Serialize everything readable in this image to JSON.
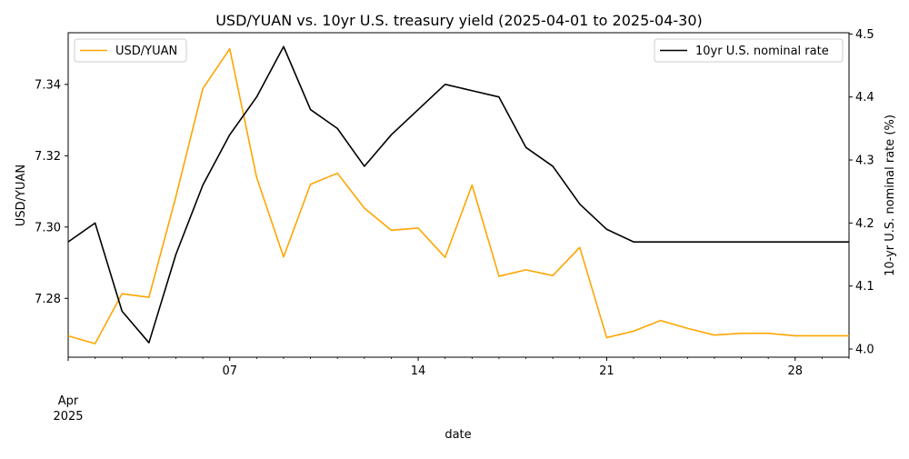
{
  "chart_data": {
    "type": "line",
    "title": "USD/YUAN vs. 10yr U.S. treasury yield (2025-04-01 to 2025-04-30)",
    "xlabel": "date",
    "x_tick_labels": [
      "07",
      "14",
      "21",
      "28"
    ],
    "x_tick_days": [
      7,
      14,
      21,
      28
    ],
    "x_origin_label": {
      "month": "Apr",
      "year": "2025"
    },
    "xlim": [
      1,
      30
    ],
    "x": [
      1,
      2,
      3,
      4,
      5,
      6,
      7,
      8,
      9,
      10,
      11,
      12,
      13,
      14,
      15,
      16,
      17,
      18,
      19,
      20,
      21,
      22,
      23,
      24,
      25,
      26,
      27,
      28,
      29,
      30
    ],
    "left_axis": {
      "label": "USD/YUAN",
      "ylim": [
        7.2635,
        7.3545
      ],
      "ticks": [
        7.28,
        7.3,
        7.32,
        7.34
      ],
      "tick_labels": [
        "7.28",
        "7.30",
        "7.32",
        "7.34"
      ]
    },
    "right_axis": {
      "label": "10-yr U.S. nominal rate (%)",
      "ylim": [
        3.987,
        4.502
      ],
      "ticks": [
        4.0,
        4.1,
        4.2,
        4.3,
        4.4,
        4.5
      ],
      "tick_labels": [
        "4.0",
        "4.1",
        "4.2",
        "4.3",
        "4.4",
        "4.5"
      ]
    },
    "series": [
      {
        "name": "USD/YUAN",
        "axis": "left",
        "color": "#ffa500",
        "values": [
          7.2695,
          7.2673,
          7.2813,
          7.2803,
          7.3085,
          7.3388,
          7.35,
          7.3139,
          7.2916,
          7.312,
          7.3151,
          7.3053,
          7.2991,
          7.2997,
          7.2915,
          7.3118,
          7.2862,
          7.288,
          7.2864,
          7.2943,
          7.269,
          7.2708,
          7.2738,
          7.2716,
          7.2697,
          7.2702,
          7.2702,
          7.2695,
          7.2695,
          7.2695
        ]
      },
      {
        "name": "10yr U.S. nominal rate",
        "axis": "right",
        "color": "#000000",
        "values": [
          4.17,
          4.2,
          4.06,
          4.01,
          4.15,
          4.26,
          4.34,
          4.4,
          4.48,
          4.38,
          4.35,
          4.29,
          4.34,
          4.38,
          4.42,
          4.41,
          4.4,
          4.32,
          4.29,
          4.23,
          4.19,
          4.17,
          4.17,
          4.17,
          4.17,
          4.17,
          4.17,
          4.17,
          4.17,
          4.17
        ]
      }
    ],
    "legend_left": {
      "label": "USD/YUAN",
      "placement": "upper-left"
    },
    "legend_right": {
      "label": "10yr U.S. nominal rate",
      "placement": "upper-right"
    },
    "grid": false
  }
}
